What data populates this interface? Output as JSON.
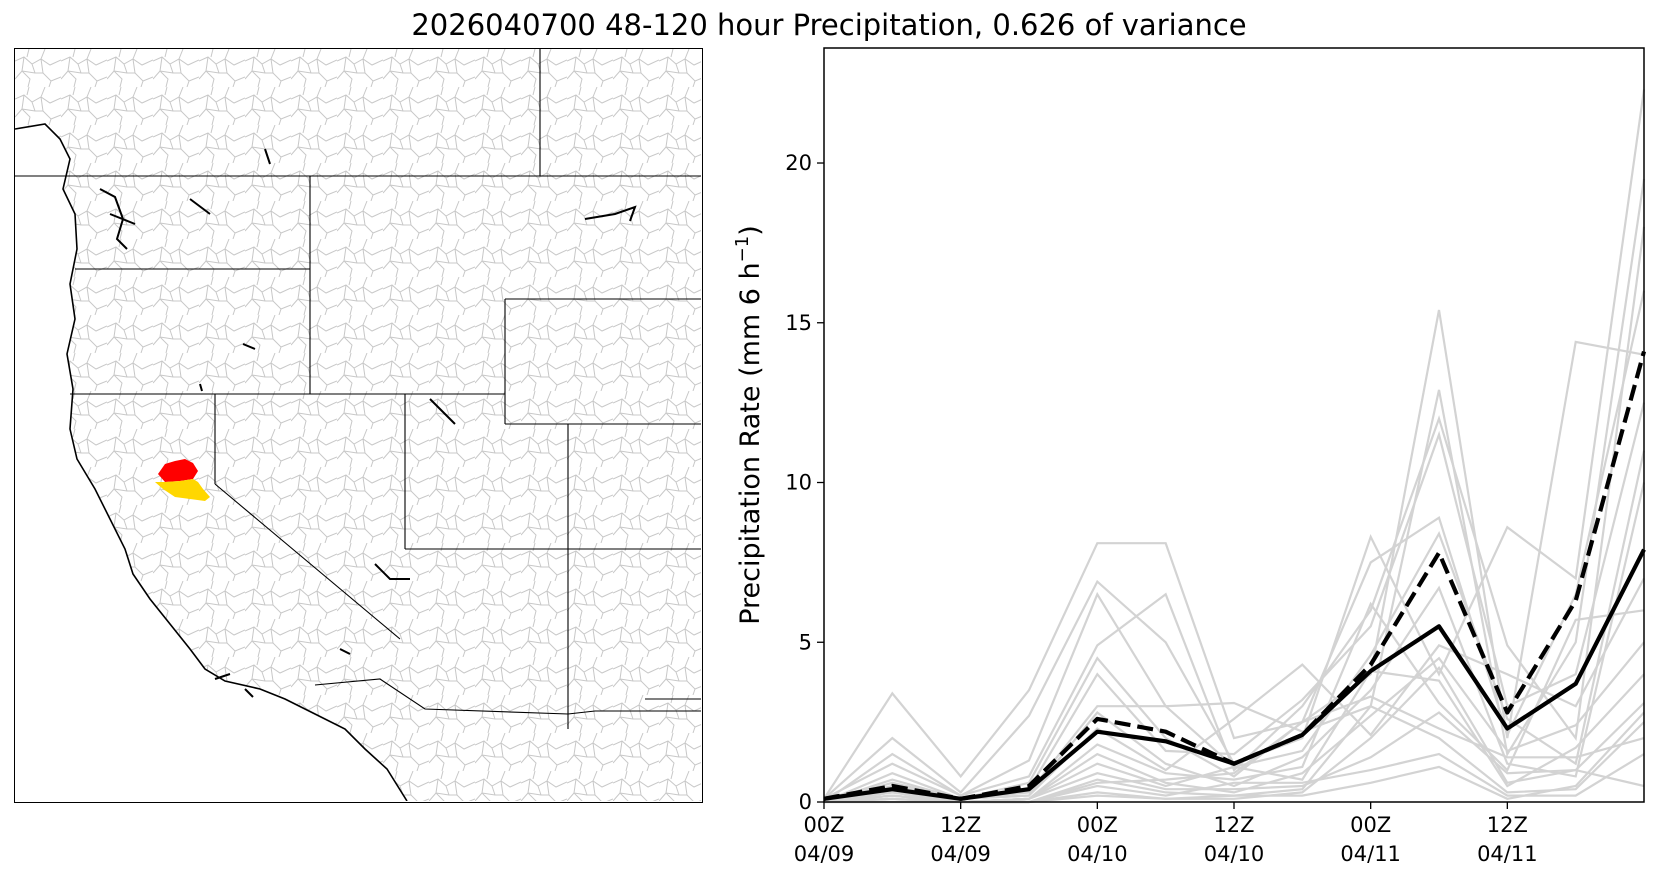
{
  "title": "2026040700 48-120 hour Precipitation, 0.626 of variance",
  "map": {
    "description_icon": "western-us-basin-map",
    "highlight_colors": {
      "upper": "#ff0000",
      "lower": "#ffd700"
    },
    "border_color": "#000000",
    "basin_line_color": "#c8c8c8"
  },
  "chart_data": {
    "type": "line",
    "xlabel": "",
    "ylabel": "Precipitation Rate (mm 6 h",
    "ylabel_sup": "−1",
    "ylabel_close": ")",
    "xlim": [
      0,
      12
    ],
    "ylim": [
      0,
      23.6
    ],
    "grid": false,
    "x_ticks": [
      {
        "x": 0,
        "line1": "00Z",
        "line2": "04/09"
      },
      {
        "x": 2,
        "line1": "12Z",
        "line2": "04/09"
      },
      {
        "x": 4,
        "line1": "00Z",
        "line2": "04/10"
      },
      {
        "x": 6,
        "line1": "12Z",
        "line2": "04/10"
      },
      {
        "x": 8,
        "line1": "00Z",
        "line2": "04/11"
      },
      {
        "x": 10,
        "line1": "12Z",
        "line2": "04/11"
      }
    ],
    "y_ticks": [
      0,
      5,
      10,
      15,
      20
    ],
    "x": [
      0,
      1,
      2,
      3,
      4,
      5,
      6,
      7,
      8,
      9,
      10,
      11,
      12
    ],
    "ensemble_color": "#d3d3d3",
    "ensemble_members": [
      [
        0.1,
        3.4,
        0.8,
        3.5,
        8.1,
        8.1,
        2.0,
        2.5,
        4.0,
        15.4,
        2.0,
        14.4,
        14.0
      ],
      [
        0.1,
        2.0,
        0.3,
        2.7,
        6.9,
        5.0,
        1.2,
        2.0,
        8.3,
        4.0,
        8.6,
        7.0,
        22.3
      ],
      [
        0.0,
        1.5,
        0.2,
        1.3,
        6.5,
        3.0,
        3.1,
        2.2,
        3.0,
        12.9,
        1.5,
        5.0,
        19.5
      ],
      [
        0.1,
        1.2,
        0.2,
        0.8,
        4.9,
        6.5,
        1.0,
        3.0,
        6.0,
        12.0,
        4.9,
        2.0,
        18.0
      ],
      [
        0.0,
        0.9,
        0.1,
        0.6,
        4.5,
        2.0,
        0.8,
        2.5,
        7.5,
        8.9,
        2.1,
        6.5,
        16.0
      ],
      [
        0.0,
        0.7,
        0.1,
        0.4,
        4.0,
        1.6,
        1.5,
        3.2,
        5.5,
        11.5,
        3.0,
        4.0,
        12.5
      ],
      [
        0.0,
        0.6,
        0.1,
        0.3,
        3.0,
        3.0,
        1.1,
        1.6,
        4.6,
        8.4,
        2.6,
        1.2,
        11.0
      ],
      [
        0.0,
        0.5,
        0.1,
        0.2,
        2.8,
        1.2,
        0.5,
        1.4,
        3.5,
        6.7,
        1.2,
        0.8,
        10.0
      ],
      [
        0.0,
        0.4,
        0.1,
        0.2,
        2.3,
        1.0,
        2.6,
        4.3,
        2.1,
        4.9,
        4.0,
        3.0,
        7.0
      ],
      [
        0.0,
        0.3,
        0.0,
        0.1,
        1.8,
        0.9,
        0.7,
        1.1,
        6.2,
        3.1,
        1.0,
        5.7,
        6.0
      ],
      [
        0.0,
        0.3,
        0.0,
        0.1,
        1.5,
        0.6,
        0.3,
        0.9,
        2.7,
        4.5,
        1.6,
        2.4,
        5.0
      ],
      [
        0.0,
        0.2,
        0.0,
        0.1,
        1.2,
        0.5,
        1.1,
        0.7,
        4.1,
        3.8,
        0.5,
        1.7,
        4.0
      ],
      [
        0.0,
        0.2,
        0.0,
        0.1,
        0.9,
        0.4,
        0.4,
        0.5,
        1.4,
        2.8,
        0.9,
        1.0,
        3.1
      ],
      [
        0.0,
        0.1,
        0.0,
        0.0,
        0.7,
        0.3,
        0.2,
        0.4,
        3.0,
        2.0,
        0.3,
        0.4,
        2.5
      ],
      [
        0.0,
        0.1,
        0.0,
        0.0,
        0.5,
        0.2,
        0.6,
        0.6,
        1.0,
        1.5,
        0.2,
        0.2,
        1.5
      ],
      [
        0.0,
        0.0,
        0.0,
        0.0,
        0.3,
        0.1,
        0.1,
        0.3,
        2.0,
        4.2,
        0.6,
        1.0,
        0.5
      ],
      [
        0.0,
        0.0,
        0.0,
        0.0,
        0.2,
        0.1,
        0.2,
        0.2,
        0.6,
        1.1,
        0.1,
        0.5,
        2.8
      ],
      [
        0.0,
        0.2,
        0.0,
        0.0,
        0.6,
        0.7,
        0.9,
        2.5,
        3.3,
        2.3,
        1.4,
        1.4,
        2.0
      ]
    ],
    "series": [
      {
        "values": [
          0.1,
          0.4,
          0.1,
          0.4,
          2.2,
          1.9,
          1.2,
          2.1,
          4.1,
          5.5,
          2.3,
          3.7,
          7.9
        ],
        "color": "#000000",
        "style": "solid"
      },
      {
        "values": [
          0.1,
          0.5,
          0.1,
          0.5,
          2.6,
          2.2,
          1.2,
          2.1,
          4.3,
          7.8,
          2.8,
          6.3,
          14.1
        ],
        "color": "#000000",
        "style": "dashed"
      }
    ]
  }
}
